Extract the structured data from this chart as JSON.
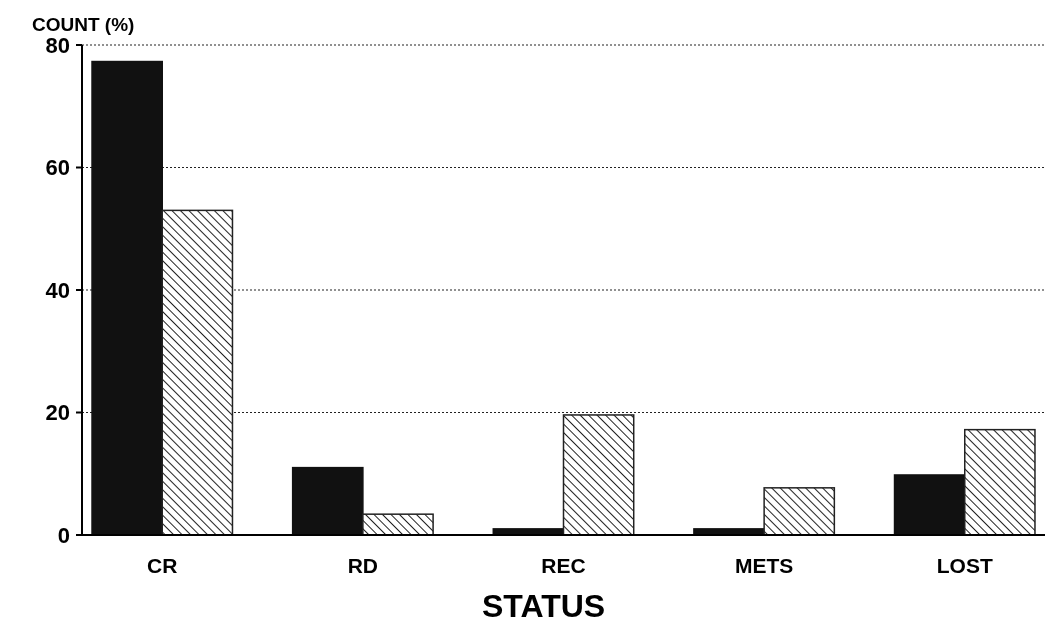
{
  "chart_data": {
    "type": "bar",
    "ylabel": "COUNT (%)",
    "xlabel": "STATUS",
    "categories": [
      "CR",
      "RD",
      "REC",
      "METS",
      "LOST"
    ],
    "series": [
      {
        "color": "#111111",
        "values": [
          77.3,
          11,
          1,
          1,
          9.8
        ]
      },
      {
        "color": "#222222",
        "values": [
          53,
          3.4,
          19.6,
          7.7,
          17.2
        ]
      }
    ],
    "ylim": [
      0,
      80
    ],
    "yticks": [
      0,
      20,
      40,
      60,
      80
    ],
    "grid": "y"
  }
}
